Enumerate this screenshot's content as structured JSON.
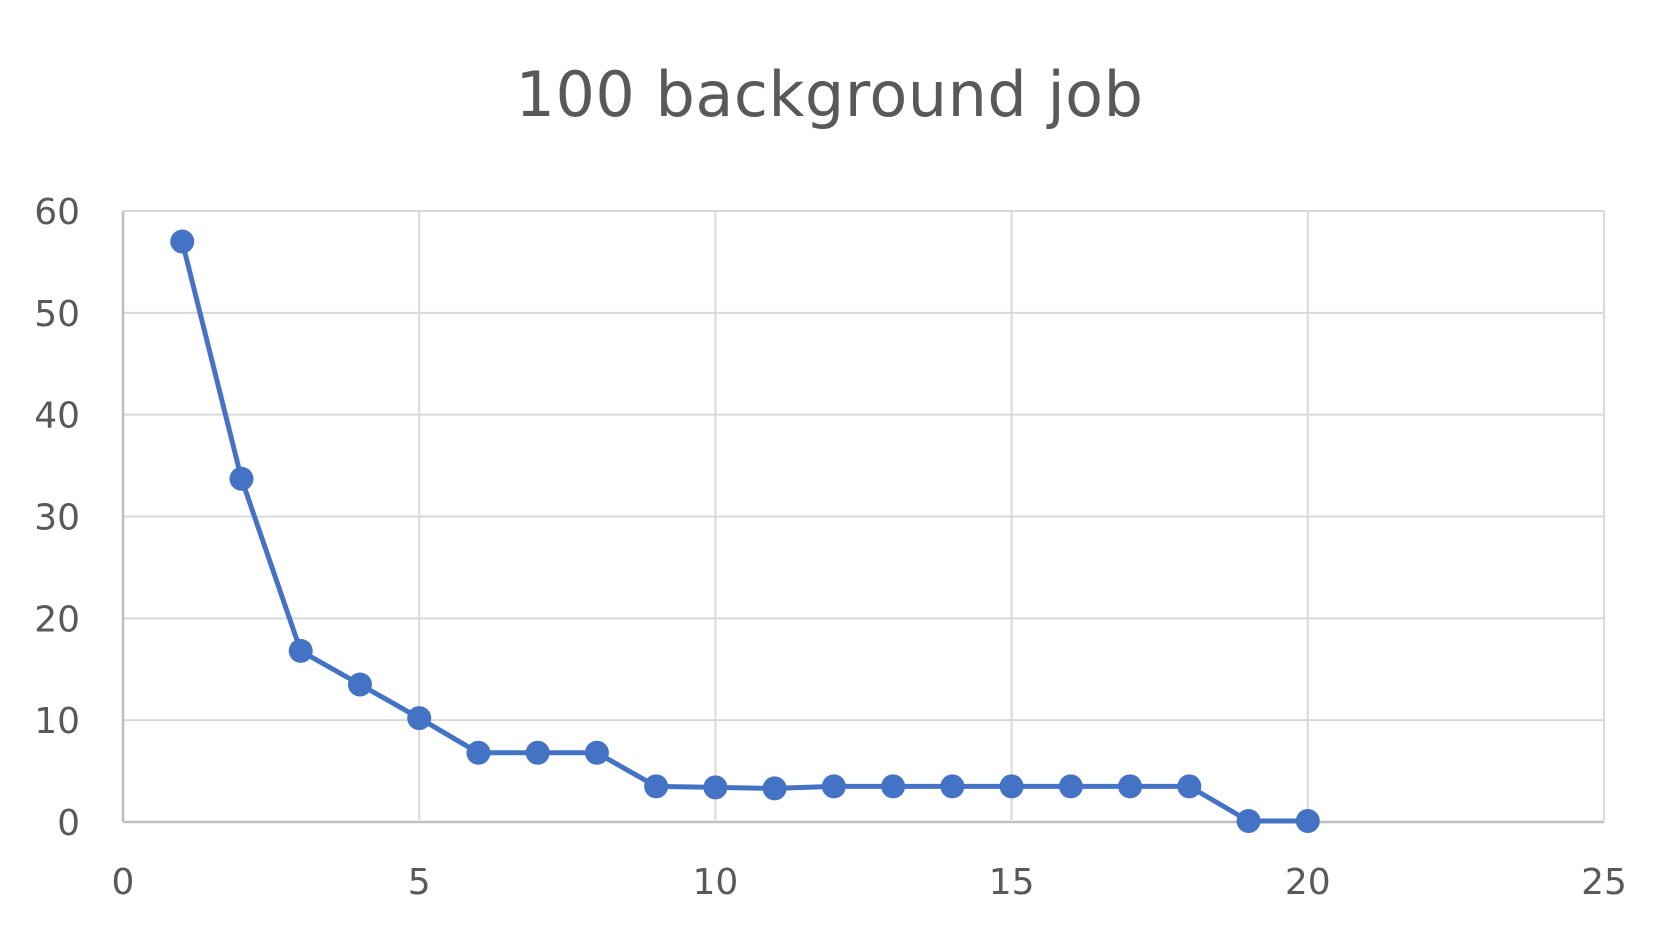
{
  "chart_data": {
    "type": "scatter",
    "title": "100 background job",
    "xlabel": "",
    "ylabel": "",
    "xlim": [
      0,
      25
    ],
    "ylim": [
      0,
      60
    ],
    "x_ticks": [
      0,
      5,
      10,
      15,
      20,
      25
    ],
    "y_ticks": [
      0,
      10,
      20,
      30,
      40,
      50,
      60
    ],
    "grid": true,
    "legend": "none",
    "series": [
      {
        "color": "#4472C4",
        "points": [
          {
            "x": 1,
            "y": 57
          },
          {
            "x": 2,
            "y": 33.7
          },
          {
            "x": 3,
            "y": 16.8
          },
          {
            "x": 4,
            "y": 13.5
          },
          {
            "x": 5,
            "y": 10.2
          },
          {
            "x": 6,
            "y": 6.8
          },
          {
            "x": 7,
            "y": 6.8
          },
          {
            "x": 8,
            "y": 6.8
          },
          {
            "x": 9,
            "y": 3.5
          },
          {
            "x": 10,
            "y": 3.4
          },
          {
            "x": 11,
            "y": 3.3
          },
          {
            "x": 12,
            "y": 3.5
          },
          {
            "x": 13,
            "y": 3.5
          },
          {
            "x": 14,
            "y": 3.5
          },
          {
            "x": 15,
            "y": 3.5
          },
          {
            "x": 16,
            "y": 3.5
          },
          {
            "x": 17,
            "y": 3.5
          },
          {
            "x": 18,
            "y": 3.5
          },
          {
            "x": 19,
            "y": 0.1
          },
          {
            "x": 20,
            "y": 0.1
          }
        ]
      }
    ]
  },
  "colors": {
    "series": "#4472C4",
    "grid": "#d9d9d9",
    "axis": "#bfbfbf",
    "text": "#595959"
  }
}
